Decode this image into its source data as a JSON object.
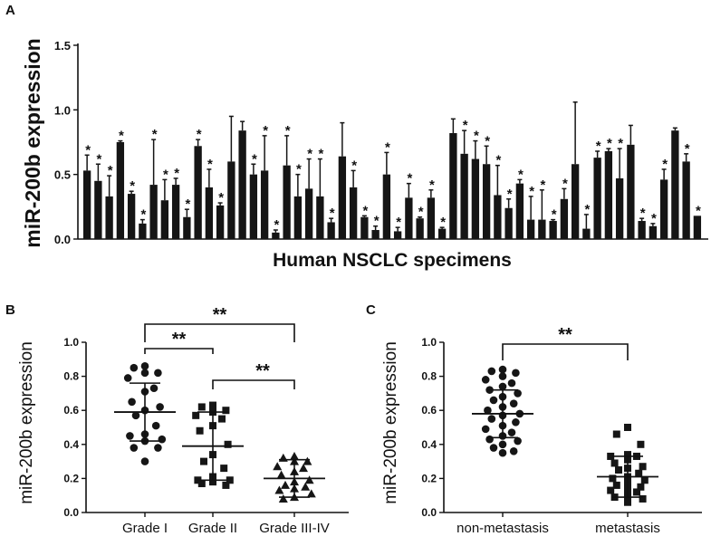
{
  "panel_labels": [
    "A",
    "B",
    "C"
  ],
  "chart_data": [
    {
      "type": "bar",
      "panel": "A",
      "xlabel": "Human NSCLC specimens",
      "ylabel": "miR-200b expression",
      "ylim": [
        0,
        1.5
      ],
      "yticks": [
        "0.0",
        "0.5",
        "1.0",
        "1.5"
      ],
      "significance_marker": "*",
      "bars": [
        {
          "value": 0.53,
          "err": 0.12,
          "sig": true
        },
        {
          "value": 0.45,
          "err": 0.13,
          "sig": true
        },
        {
          "value": 0.33,
          "err": 0.16,
          "sig": true
        },
        {
          "value": 0.75,
          "err": 0.01,
          "sig": true
        },
        {
          "value": 0.35,
          "err": 0.02,
          "sig": true
        },
        {
          "value": 0.12,
          "err": 0.03,
          "sig": true
        },
        {
          "value": 0.42,
          "err": 0.35,
          "sig": true
        },
        {
          "value": 0.3,
          "err": 0.16,
          "sig": true
        },
        {
          "value": 0.42,
          "err": 0.05,
          "sig": true
        },
        {
          "value": 0.17,
          "err": 0.06,
          "sig": true
        },
        {
          "value": 0.72,
          "err": 0.05,
          "sig": true
        },
        {
          "value": 0.4,
          "err": 0.14,
          "sig": true
        },
        {
          "value": 0.26,
          "err": 0.02,
          "sig": true
        },
        {
          "value": 0.6,
          "err": 0.35,
          "sig": false
        },
        {
          "value": 0.84,
          "err": 0.07,
          "sig": false
        },
        {
          "value": 0.5,
          "err": 0.08,
          "sig": true
        },
        {
          "value": 0.53,
          "err": 0.27,
          "sig": true
        },
        {
          "value": 0.05,
          "err": 0.02,
          "sig": true
        },
        {
          "value": 0.57,
          "err": 0.23,
          "sig": true
        },
        {
          "value": 0.33,
          "err": 0.17,
          "sig": true
        },
        {
          "value": 0.39,
          "err": 0.23,
          "sig": true
        },
        {
          "value": 0.33,
          "err": 0.29,
          "sig": true
        },
        {
          "value": 0.13,
          "err": 0.03,
          "sig": true
        },
        {
          "value": 0.64,
          "err": 0.26,
          "sig": false
        },
        {
          "value": 0.4,
          "err": 0.13,
          "sig": true
        },
        {
          "value": 0.17,
          "err": 0.01,
          "sig": true
        },
        {
          "value": 0.07,
          "err": 0.03,
          "sig": true
        },
        {
          "value": 0.5,
          "err": 0.17,
          "sig": true
        },
        {
          "value": 0.06,
          "err": 0.03,
          "sig": true
        },
        {
          "value": 0.32,
          "err": 0.11,
          "sig": true
        },
        {
          "value": 0.16,
          "err": 0.01,
          "sig": true
        },
        {
          "value": 0.32,
          "err": 0.06,
          "sig": true
        },
        {
          "value": 0.08,
          "err": 0.01,
          "sig": true
        },
        {
          "value": 0.82,
          "err": 0.11,
          "sig": false
        },
        {
          "value": 0.66,
          "err": 0.18,
          "sig": true
        },
        {
          "value": 0.62,
          "err": 0.14,
          "sig": true
        },
        {
          "value": 0.58,
          "err": 0.14,
          "sig": true
        },
        {
          "value": 0.34,
          "err": 0.23,
          "sig": true
        },
        {
          "value": 0.24,
          "err": 0.07,
          "sig": true
        },
        {
          "value": 0.43,
          "err": 0.03,
          "sig": true
        },
        {
          "value": 0.15,
          "err": 0.18,
          "sig": true
        },
        {
          "value": 0.15,
          "err": 0.23,
          "sig": true
        },
        {
          "value": 0.14,
          "err": 0.01,
          "sig": true
        },
        {
          "value": 0.31,
          "err": 0.08,
          "sig": true
        },
        {
          "value": 0.58,
          "err": 0.48,
          "sig": false
        },
        {
          "value": 0.08,
          "err": 0.11,
          "sig": true
        },
        {
          "value": 0.63,
          "err": 0.05,
          "sig": true
        },
        {
          "value": 0.68,
          "err": 0.02,
          "sig": true
        },
        {
          "value": 0.47,
          "err": 0.23,
          "sig": true
        },
        {
          "value": 0.73,
          "err": 0.15,
          "sig": false
        },
        {
          "value": 0.14,
          "err": 0.02,
          "sig": true
        },
        {
          "value": 0.1,
          "err": 0.02,
          "sig": true
        },
        {
          "value": 0.46,
          "err": 0.08,
          "sig": true
        },
        {
          "value": 0.84,
          "err": 0.02,
          "sig": false
        },
        {
          "value": 0.6,
          "err": 0.06,
          "sig": true
        },
        {
          "value": 0.18,
          "err": 0.0,
          "sig": true
        }
      ]
    },
    {
      "type": "scatter",
      "panel": "B",
      "ylabel": "miR-200b expression",
      "ylim": [
        0,
        1.0
      ],
      "yticks": [
        "0.0",
        "0.2",
        "0.4",
        "0.6",
        "0.8",
        "1.0"
      ],
      "categories": [
        "Grade I",
        "Grade II",
        "Grade III-IV"
      ],
      "series": [
        {
          "name": "Grade I",
          "marker": "circle",
          "mean": 0.59,
          "sd_low": 0.42,
          "sd_high": 0.76,
          "values": [
            0.86,
            0.85,
            0.82,
            0.82,
            0.79,
            0.73,
            0.71,
            0.65,
            0.62,
            0.6,
            0.57,
            0.51,
            0.46,
            0.45,
            0.43,
            0.42,
            0.38,
            0.38,
            0.3
          ]
        },
        {
          "name": "Grade II",
          "marker": "square",
          "mean": 0.39,
          "sd_low": 0.19,
          "sd_high": 0.59,
          "values": [
            0.63,
            0.62,
            0.6,
            0.59,
            0.57,
            0.55,
            0.51,
            0.48,
            0.4,
            0.34,
            0.3,
            0.26,
            0.21,
            0.19,
            0.19,
            0.18,
            0.17,
            0.16
          ]
        },
        {
          "name": "Grade III-IV",
          "marker": "triangle",
          "mean": 0.2,
          "sd_low": 0.09,
          "sd_high": 0.31,
          "values": [
            0.33,
            0.32,
            0.3,
            0.3,
            0.27,
            0.26,
            0.24,
            0.22,
            0.19,
            0.18,
            0.16,
            0.15,
            0.14,
            0.13,
            0.11,
            0.09,
            0.08
          ]
        }
      ],
      "comparisons": [
        {
          "from": "Grade I",
          "to": "Grade III-IV",
          "label": "**"
        },
        {
          "from": "Grade I",
          "to": "Grade II",
          "label": "**"
        },
        {
          "from": "Grade II",
          "to": "Grade III-IV",
          "label": "**"
        }
      ]
    },
    {
      "type": "scatter",
      "panel": "C",
      "ylabel": "miR-200b expression",
      "ylim": [
        0,
        1.0
      ],
      "yticks": [
        "0.0",
        "0.2",
        "0.4",
        "0.6",
        "0.8",
        "1.0"
      ],
      "categories": [
        "non-metastasis",
        "metastasis"
      ],
      "series": [
        {
          "name": "non-metastasis",
          "marker": "circle",
          "mean": 0.58,
          "sd_low": 0.44,
          "sd_high": 0.72,
          "values": [
            0.84,
            0.83,
            0.82,
            0.8,
            0.78,
            0.76,
            0.74,
            0.72,
            0.7,
            0.68,
            0.66,
            0.64,
            0.62,
            0.6,
            0.58,
            0.57,
            0.55,
            0.53,
            0.51,
            0.49,
            0.47,
            0.45,
            0.43,
            0.42,
            0.4,
            0.38,
            0.36,
            0.35
          ]
        },
        {
          "name": "metastasis",
          "marker": "square",
          "mean": 0.21,
          "sd_low": 0.09,
          "sd_high": 0.33,
          "values": [
            0.5,
            0.46,
            0.4,
            0.34,
            0.33,
            0.33,
            0.31,
            0.29,
            0.27,
            0.26,
            0.25,
            0.23,
            0.21,
            0.2,
            0.19,
            0.18,
            0.16,
            0.15,
            0.14,
            0.13,
            0.12,
            0.1,
            0.09,
            0.08,
            0.06
          ]
        }
      ],
      "comparisons": [
        {
          "from": "non-metastasis",
          "to": "metastasis",
          "label": "**"
        }
      ]
    }
  ]
}
